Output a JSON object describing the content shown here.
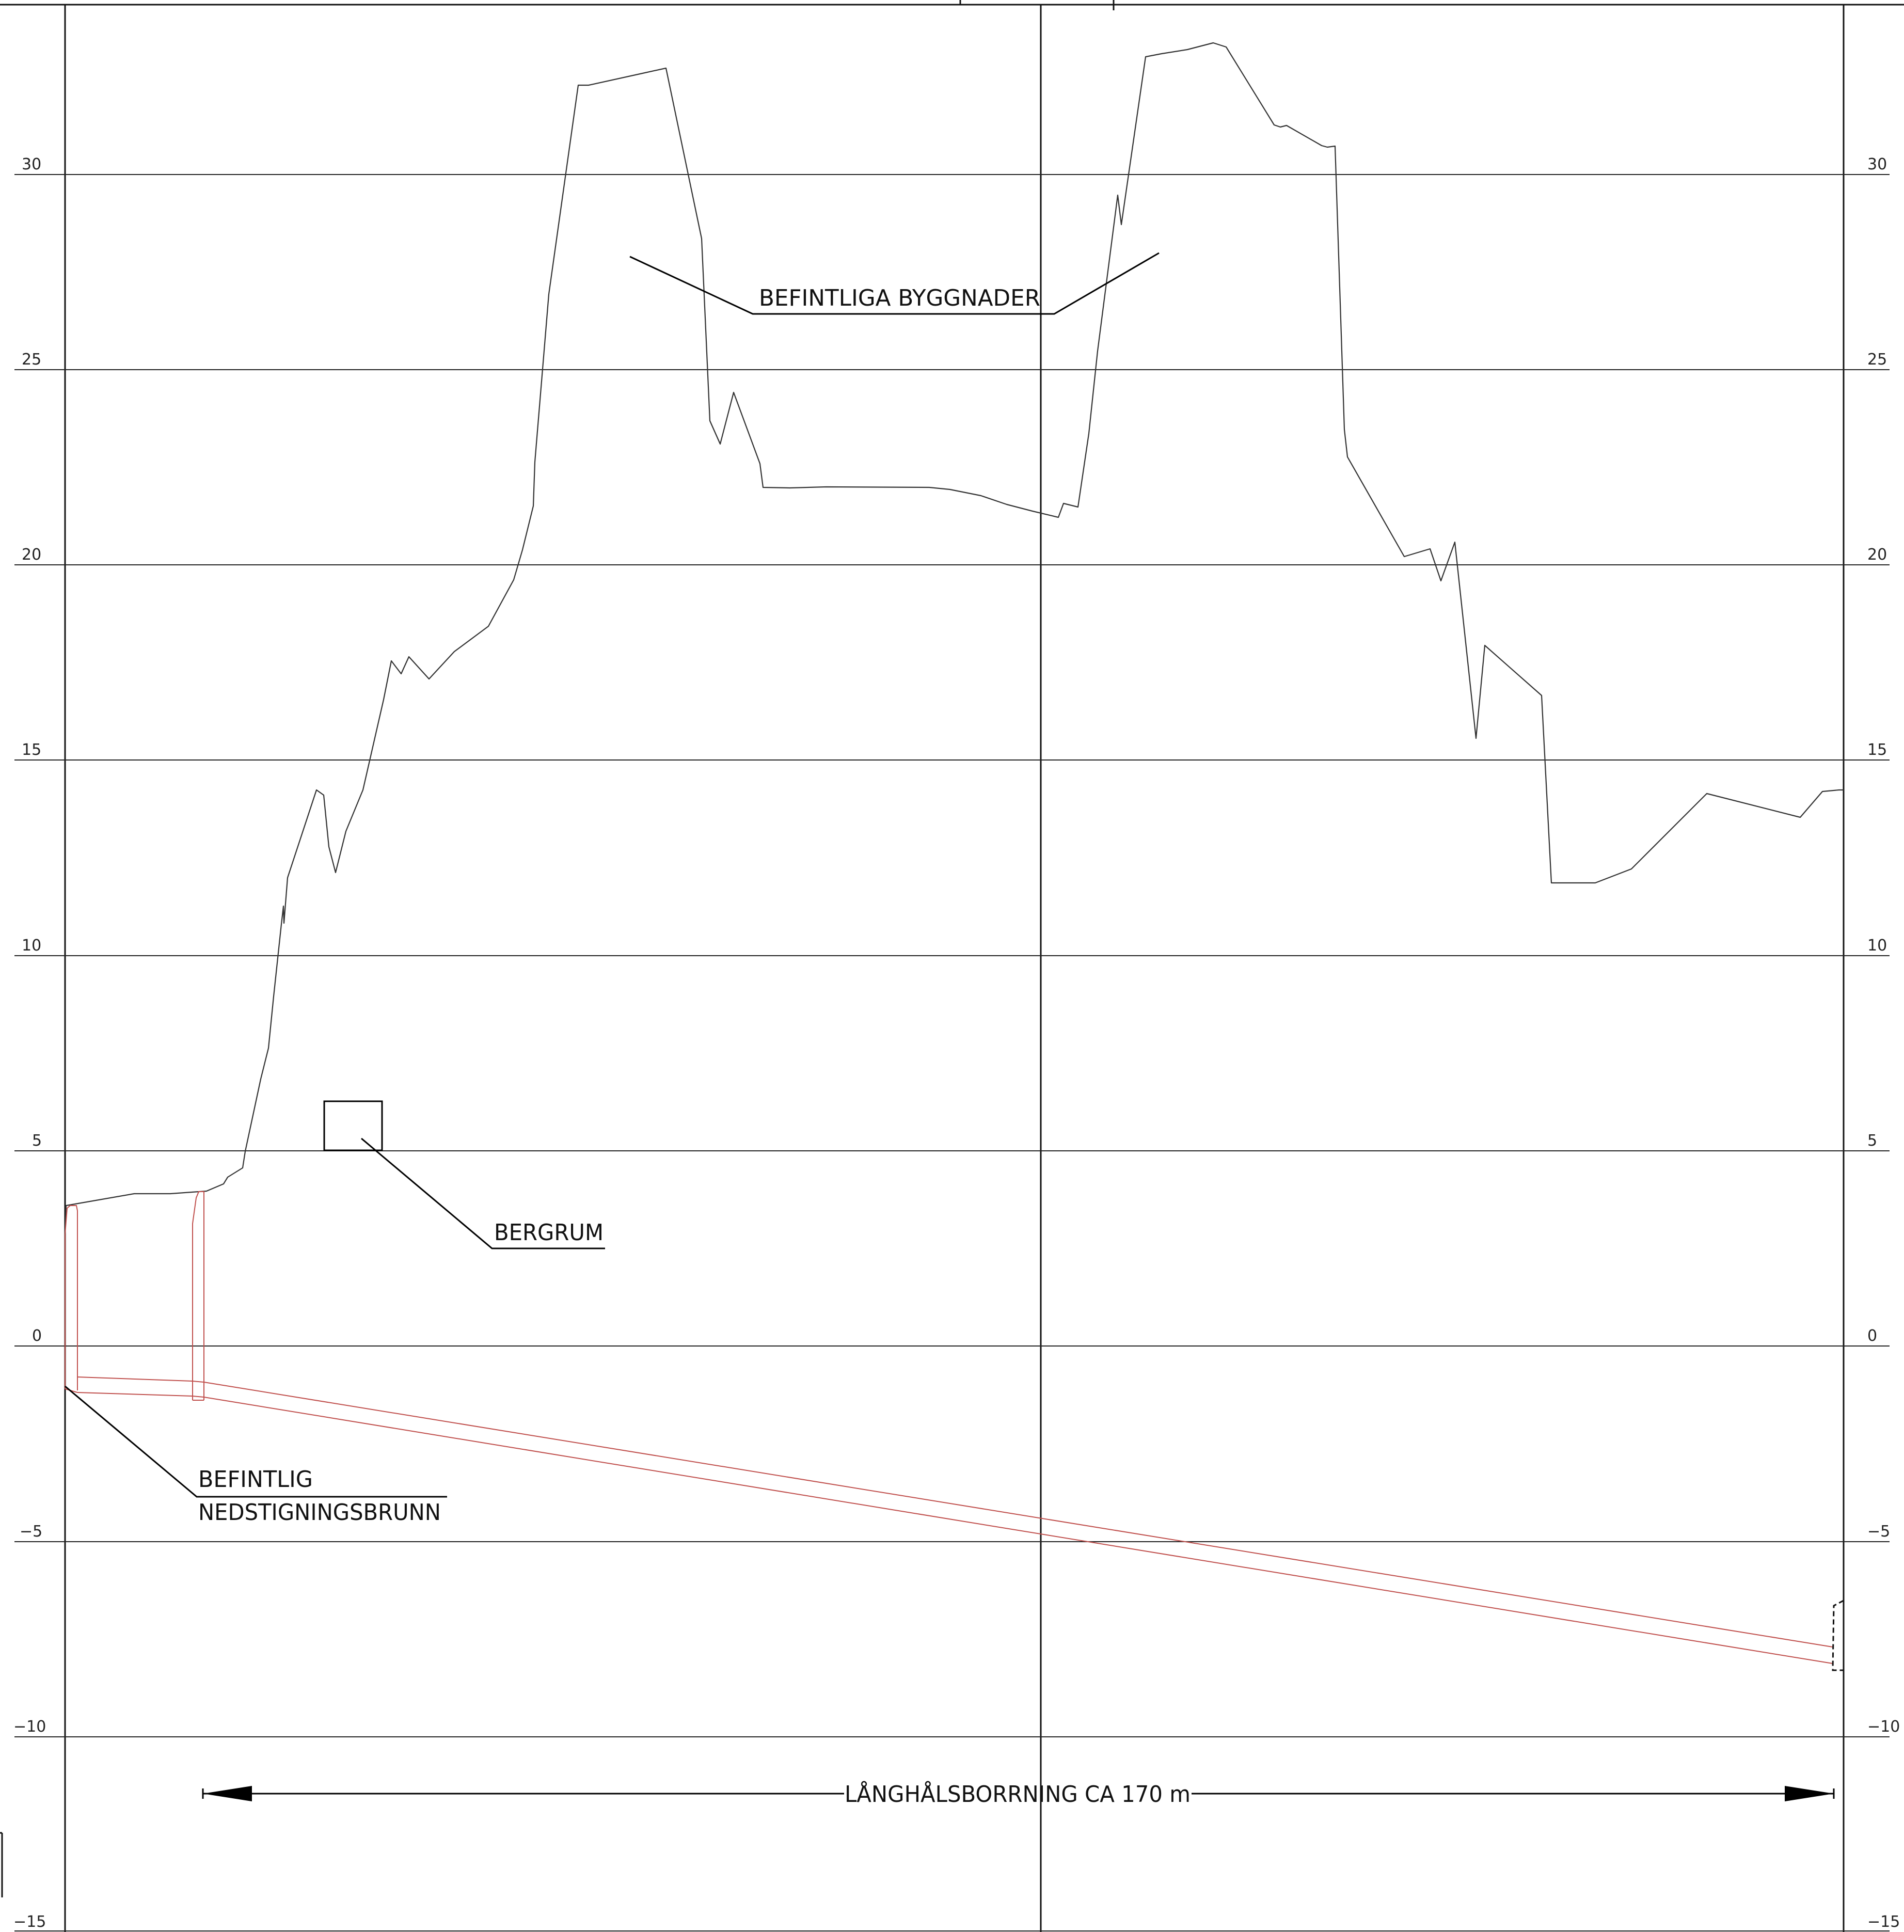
{
  "elevation_ticks_left": [
    "30",
    "25",
    "20",
    "15",
    "10",
    "5",
    "0",
    "−5",
    "−10",
    "−15"
  ],
  "elevation_ticks_right": [
    "30",
    "25",
    "20",
    "15",
    "10",
    "5",
    "0",
    "−5",
    "−10",
    "−15"
  ],
  "annotations": {
    "buildings": "BEFINTLIGA BYGGNADER",
    "rock_cavern": "BERGRUM",
    "manhole_line1": "BEFINTLIG",
    "manhole_line2": "NEDSTIGNINGSBRUNN",
    "drilling": "LÅNGHÅLSBORRNING CA 170 m"
  },
  "colors": {
    "terrain": "#333333",
    "grid": "#222222",
    "pipe": "#c0504d",
    "leader": "#000000"
  }
}
